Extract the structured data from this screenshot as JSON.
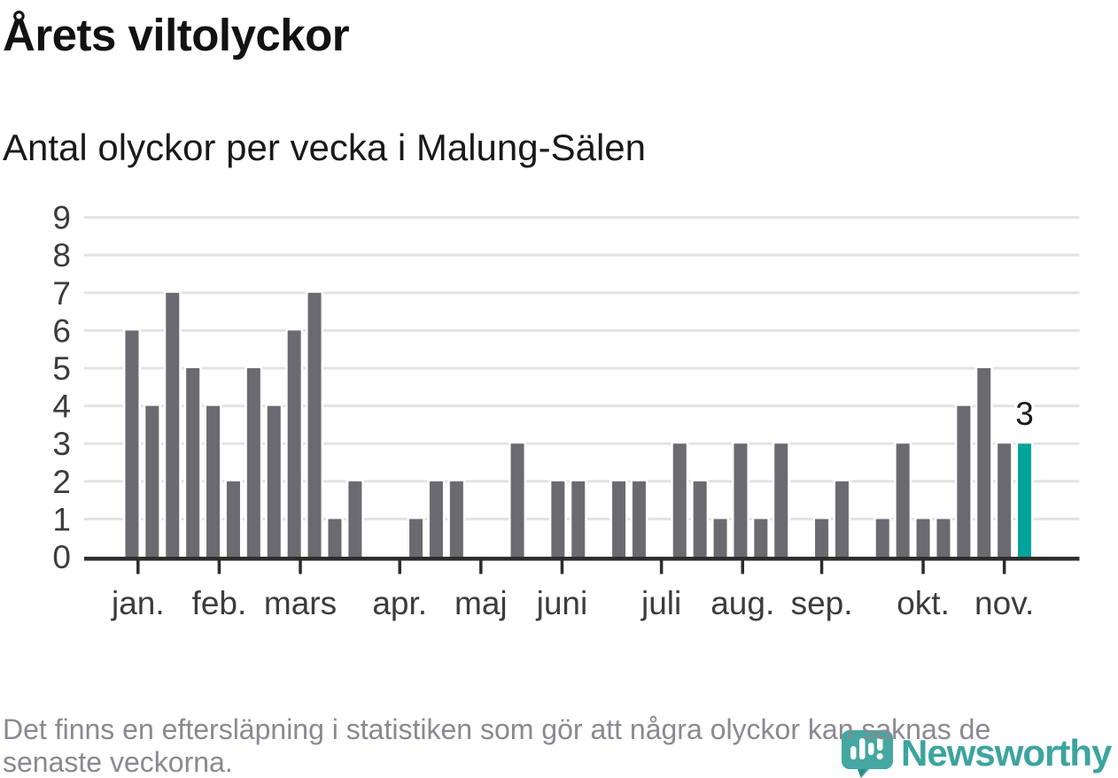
{
  "header": {
    "title": "Årets viltolyckor",
    "subtitle": "Antal olyckor per vecka i Malung-Sälen"
  },
  "chart_data": {
    "type": "bar",
    "title": "Årets viltolyckor",
    "subtitle": "Antal olyckor per vecka i Malung-Sälen",
    "x_unit": "vecka (weekly bars, jan–nov)",
    "values": [
      6,
      4,
      7,
      5,
      4,
      2,
      5,
      4,
      6,
      7,
      1,
      2,
      0,
      0,
      1,
      2,
      2,
      0,
      0,
      3,
      0,
      2,
      2,
      0,
      2,
      2,
      0,
      3,
      2,
      1,
      3,
      1,
      3,
      0,
      1,
      2,
      0,
      1,
      3,
      1,
      1,
      4,
      5,
      3,
      3
    ],
    "ylim": [
      0,
      9
    ],
    "yticks": [
      0,
      1,
      2,
      3,
      4,
      5,
      6,
      7,
      8,
      9
    ],
    "grid": true,
    "legend_position": "none",
    "month_ticks": [
      {
        "label": "jan.",
        "pos": 0.3
      },
      {
        "label": "feb.",
        "pos": 4.3
      },
      {
        "label": "mars",
        "pos": 8.3
      },
      {
        "label": "apr.",
        "pos": 13.2
      },
      {
        "label": "maj",
        "pos": 17.2
      },
      {
        "label": "juni",
        "pos": 21.2
      },
      {
        "label": "juli",
        "pos": 26.1
      },
      {
        "label": "aug.",
        "pos": 30.1
      },
      {
        "label": "sep.",
        "pos": 34.0
      },
      {
        "label": "okt.",
        "pos": 39.0
      },
      {
        "label": "nov.",
        "pos": 43.0
      }
    ],
    "highlight": {
      "index": 44,
      "value_label": "3"
    }
  },
  "footnote": {
    "lines": [
      "Det finns en eftersläpning i statistiken som gör att några olyckor kan saknas de",
      "senaste veckorna."
    ]
  },
  "branding": {
    "logo_text": "Newsworthy"
  },
  "colors": {
    "bar_gray": "#6b6a70",
    "accent_teal": "#00a49b",
    "axis_line": "#2d2d2d",
    "gridline": "#e3e3e3",
    "axis_label": "#3c3c3c",
    "annotation_text": "#1a1a1a",
    "footnote_gray": "#8b8892",
    "logo_teal": "#3ca49f"
  }
}
